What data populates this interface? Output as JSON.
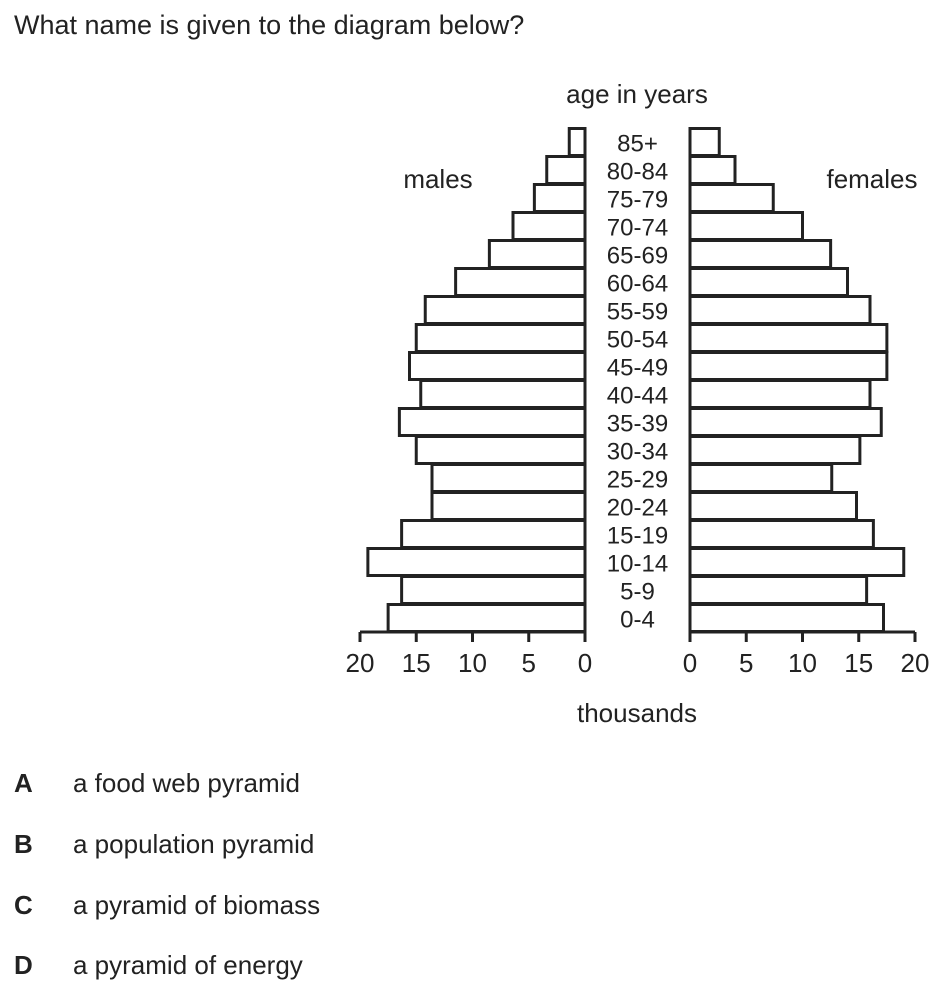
{
  "question": "What name is given to the diagram below?",
  "chart_data": {
    "type": "bar",
    "orientation": "horizontal",
    "layout": "population-pyramid",
    "title": "age in years",
    "xlabel": "thousands",
    "xlim": [
      0,
      20
    ],
    "xticks": [
      0,
      5,
      10,
      15,
      20
    ],
    "categories": [
      "0-4",
      "5-9",
      "10-14",
      "15-19",
      "20-24",
      "25-29",
      "30-34",
      "35-39",
      "40-44",
      "45-49",
      "50-54",
      "55-59",
      "60-64",
      "65-69",
      "70-74",
      "75-79",
      "80-84",
      "85+"
    ],
    "series": [
      {
        "name": "males",
        "side": "left",
        "values": [
          17.5,
          16.3,
          19.3,
          16.3,
          13.6,
          13.6,
          15.0,
          16.5,
          14.6,
          15.6,
          15.0,
          14.2,
          11.5,
          8.5,
          6.4,
          4.5,
          3.4,
          1.4
        ]
      },
      {
        "name": "females",
        "side": "right",
        "values": [
          17.2,
          15.7,
          19.0,
          16.3,
          14.8,
          12.6,
          15.1,
          17.0,
          16.0,
          17.5,
          17.5,
          16.0,
          14.0,
          12.5,
          10.0,
          7.4,
          4.0,
          2.6
        ]
      }
    ],
    "grid": false,
    "legend": "none"
  },
  "options": [
    {
      "letter": "A",
      "text": "a food web pyramid"
    },
    {
      "letter": "B",
      "text": "a population pyramid"
    },
    {
      "letter": "C",
      "text": "a pyramid of biomass"
    },
    {
      "letter": "D",
      "text": "a pyramid of energy"
    }
  ]
}
